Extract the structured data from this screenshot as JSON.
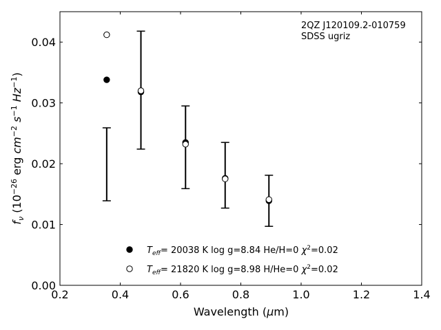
{
  "chart_data": {
    "type": "scatter",
    "annotation_lines": [
      "2QZ J120109.2-010759",
      "SDSS ugriz"
    ],
    "annotation_position": "top-right",
    "xlabel": "Wavelength (μm)",
    "ylabel": "f_ν (10^-26 erg cm^-2 s^-1 Hz^-1)",
    "xlim": [
      0.2,
      1.4
    ],
    "ylim": [
      0.0,
      0.045
    ],
    "xticks": [
      0.2,
      0.4,
      0.6,
      0.8,
      1.0,
      1.2,
      1.4
    ],
    "xtick_labels": [
      "0.2",
      "0.4",
      "0.6",
      "0.8",
      "1.0",
      "1.2",
      "1.4"
    ],
    "yticks": [
      0.0,
      0.01,
      0.02,
      0.03,
      0.04
    ],
    "ytick_labels": [
      "0.00",
      "0.01",
      "0.02",
      "0.03",
      "0.04"
    ],
    "grid": false,
    "legend_position": "bottom-center",
    "observed": {
      "marker": "errorbar",
      "x": [
        0.3551,
        0.4686,
        0.6166,
        0.748,
        0.8932
      ],
      "y": [
        0.0199,
        0.0321,
        0.0227,
        0.0181,
        0.0139
      ],
      "err": [
        0.006,
        0.0097,
        0.0068,
        0.0054,
        0.0042
      ]
    },
    "series": [
      {
        "name": "T_eff= 20038 K  log g=8.84  He/H=0  χ²=0.02",
        "legend_parts": [
          "T",
          "eff",
          "= 20038 K  log g=8.84  He/H=0  ",
          "χ",
          "2",
          "=0.02"
        ],
        "marker": "filled-circle",
        "x": [
          0.3551,
          0.4686,
          0.6166,
          0.748,
          0.8932
        ],
        "y": [
          0.0338,
          0.0318,
          0.0235,
          0.0176,
          0.0139
        ]
      },
      {
        "name": "T_eff= 21820 K  log g=8.98  H/He=0  χ²=0.02",
        "legend_parts": [
          "T",
          "eff",
          "= 21820 K  log g=8.98  H/He=0  ",
          "χ",
          "2",
          "=0.02"
        ],
        "marker": "open-circle",
        "x": [
          0.3551,
          0.4686,
          0.6166,
          0.748,
          0.8932
        ],
        "y": [
          0.0412,
          0.032,
          0.0232,
          0.0175,
          0.0141
        ]
      }
    ]
  }
}
